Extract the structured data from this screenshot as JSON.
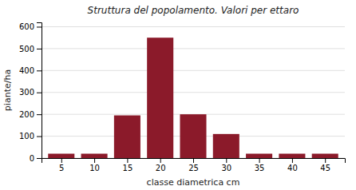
{
  "chart_data": {
    "type": "bar",
    "title": "Struttura del popolamento. Valori per ettaro",
    "xlabel": "classe diametrica cm",
    "ylabel": "piante/ha",
    "x": [
      5,
      10,
      15,
      20,
      25,
      30,
      35,
      40,
      45
    ],
    "values": [
      20,
      20,
      195,
      550,
      200,
      110,
      20,
      20,
      20
    ],
    "color": "#8B1A2A",
    "xlim": [
      2,
      48
    ],
    "xticks": [
      5,
      10,
      15,
      20,
      25,
      30,
      35,
      40,
      45
    ],
    "ylim": [
      0,
      620
    ],
    "yticks": [
      0,
      100,
      200,
      300,
      400,
      500,
      600
    ],
    "grid": true
  }
}
